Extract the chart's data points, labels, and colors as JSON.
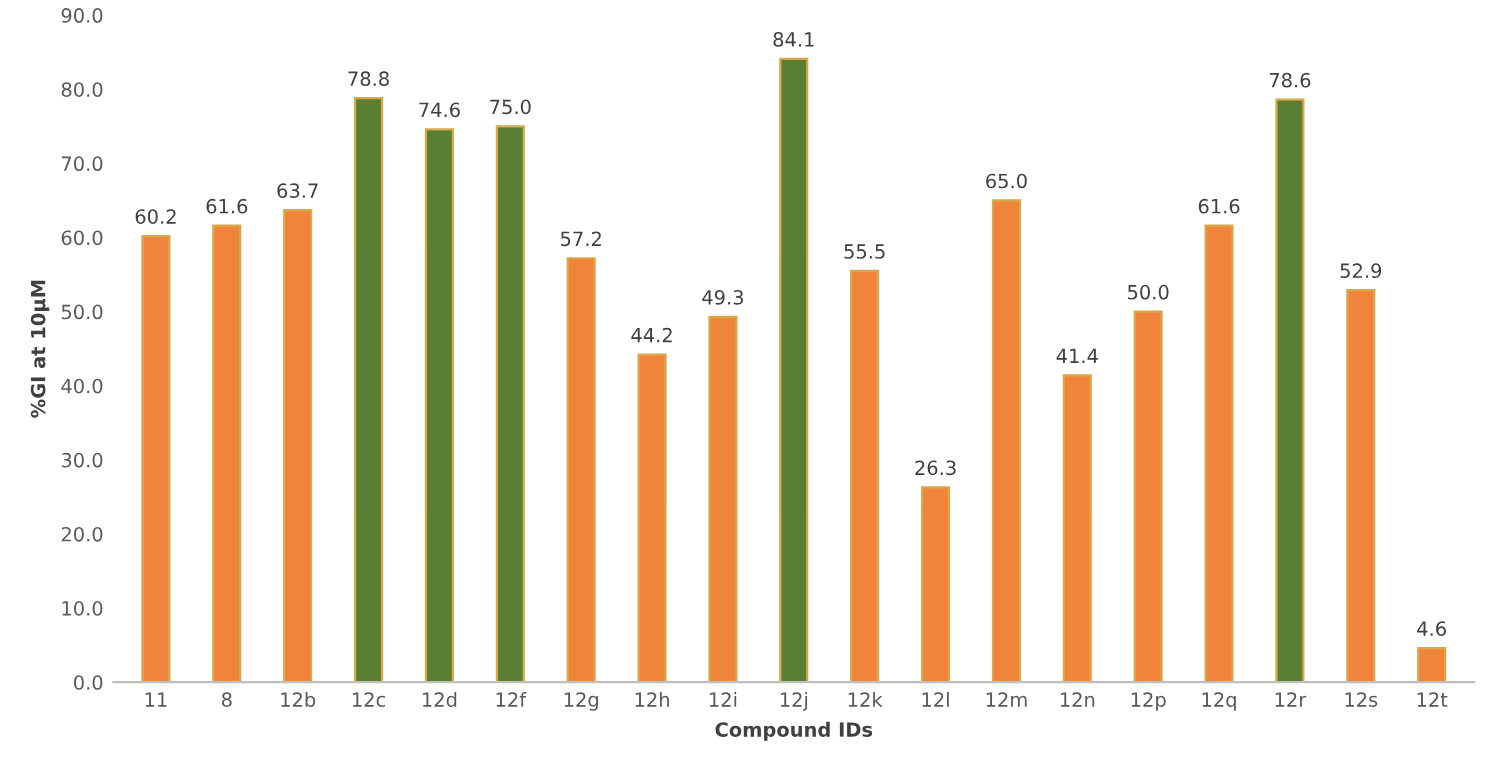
{
  "chart_data": {
    "type": "bar",
    "xlabel": "Compound IDs",
    "ylabel": "%GI at 10µM",
    "categories": [
      "11",
      "8",
      "12b",
      "12c",
      "12d",
      "12f",
      "12g",
      "12h",
      "12i",
      "12j",
      "12k",
      "12l",
      "12m",
      "12n",
      "12p",
      "12q",
      "12r",
      "12s",
      "12t"
    ],
    "values": [
      60.2,
      61.6,
      63.7,
      78.8,
      74.6,
      75.0,
      57.2,
      44.2,
      49.3,
      84.1,
      55.5,
      26.3,
      65.0,
      41.4,
      50.0,
      61.6,
      78.6,
      52.9,
      4.6
    ],
    "colors": [
      "#f0843a",
      "#f0843a",
      "#f0843a",
      "#5b7f32",
      "#5b7f32",
      "#5b7f32",
      "#f0843a",
      "#f0843a",
      "#f0843a",
      "#5b7f32",
      "#f0843a",
      "#f0843a",
      "#f0843a",
      "#f0843a",
      "#f0843a",
      "#f0843a",
      "#5b7f32",
      "#f0843a",
      "#f0843a"
    ],
    "ylim": [
      0,
      90
    ],
    "yticks": [
      {
        "value": 0,
        "label": "0.0"
      },
      {
        "value": 10,
        "label": "10.0"
      },
      {
        "value": 20,
        "label": "20.0"
      },
      {
        "value": 30,
        "label": "30.0"
      },
      {
        "value": 40,
        "label": "40.0"
      },
      {
        "value": 50,
        "label": "50.0"
      },
      {
        "value": 60,
        "label": "60.0"
      },
      {
        "value": 70,
        "label": "70.0"
      },
      {
        "value": 80,
        "label": "80.0"
      },
      {
        "value": 90,
        "label": "90.0"
      }
    ],
    "value_labels": [
      "60.2",
      "61.6",
      "63.7",
      "78.8",
      "74.6",
      "75.0",
      "57.2",
      "44.2",
      "49.3",
      "84.1",
      "55.5",
      "26.3",
      "65.0",
      "41.4",
      "50.0",
      "61.6",
      "78.6",
      "52.9",
      "4.6"
    ],
    "grid": false
  }
}
